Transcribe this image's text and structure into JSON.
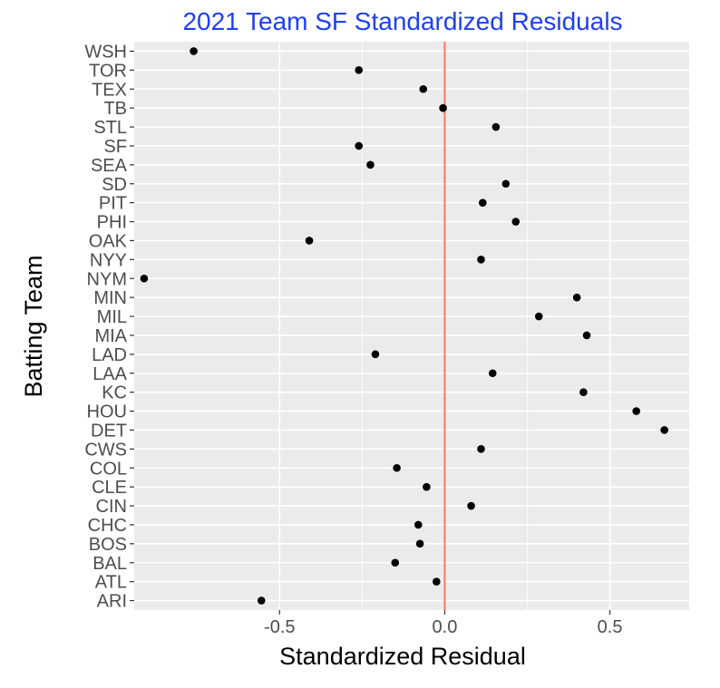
{
  "chart_data": {
    "type": "scatter",
    "title": "2021 Team SF Standardized Residuals",
    "xlabel": "Standardized Residual",
    "ylabel": "Batting Team",
    "xlim": [
      -0.94,
      0.74
    ],
    "x_ticks": [
      -0.5,
      0.0,
      0.5
    ],
    "x_tick_labels": [
      "-0.5",
      "0.0",
      "0.5"
    ],
    "reference_line": {
      "x": 0.0,
      "color": "#F8766D"
    },
    "grid": true,
    "categories": [
      "WSH",
      "TOR",
      "TEX",
      "TB",
      "STL",
      "SF",
      "SEA",
      "SD",
      "PIT",
      "PHI",
      "OAK",
      "NYY",
      "NYM",
      "MIN",
      "MIL",
      "MIA",
      "LAD",
      "LAA",
      "KC",
      "HOU",
      "DET",
      "CWS",
      "COL",
      "CLE",
      "CIN",
      "CHC",
      "BOS",
      "BAL",
      "ATL",
      "ARI"
    ],
    "values": [
      -0.76,
      -0.26,
      -0.065,
      -0.005,
      0.155,
      -0.26,
      -0.225,
      0.185,
      0.115,
      0.215,
      -0.41,
      0.11,
      -0.91,
      0.4,
      0.285,
      0.43,
      -0.21,
      0.145,
      0.42,
      0.58,
      0.665,
      0.11,
      -0.145,
      -0.055,
      0.08,
      -0.08,
      -0.075,
      -0.15,
      -0.025,
      -0.555
    ],
    "colors": {
      "title": "#1F3FF5",
      "panel": "#EBEBEB",
      "grid": "#FFFFFF",
      "point": "#000000"
    }
  }
}
